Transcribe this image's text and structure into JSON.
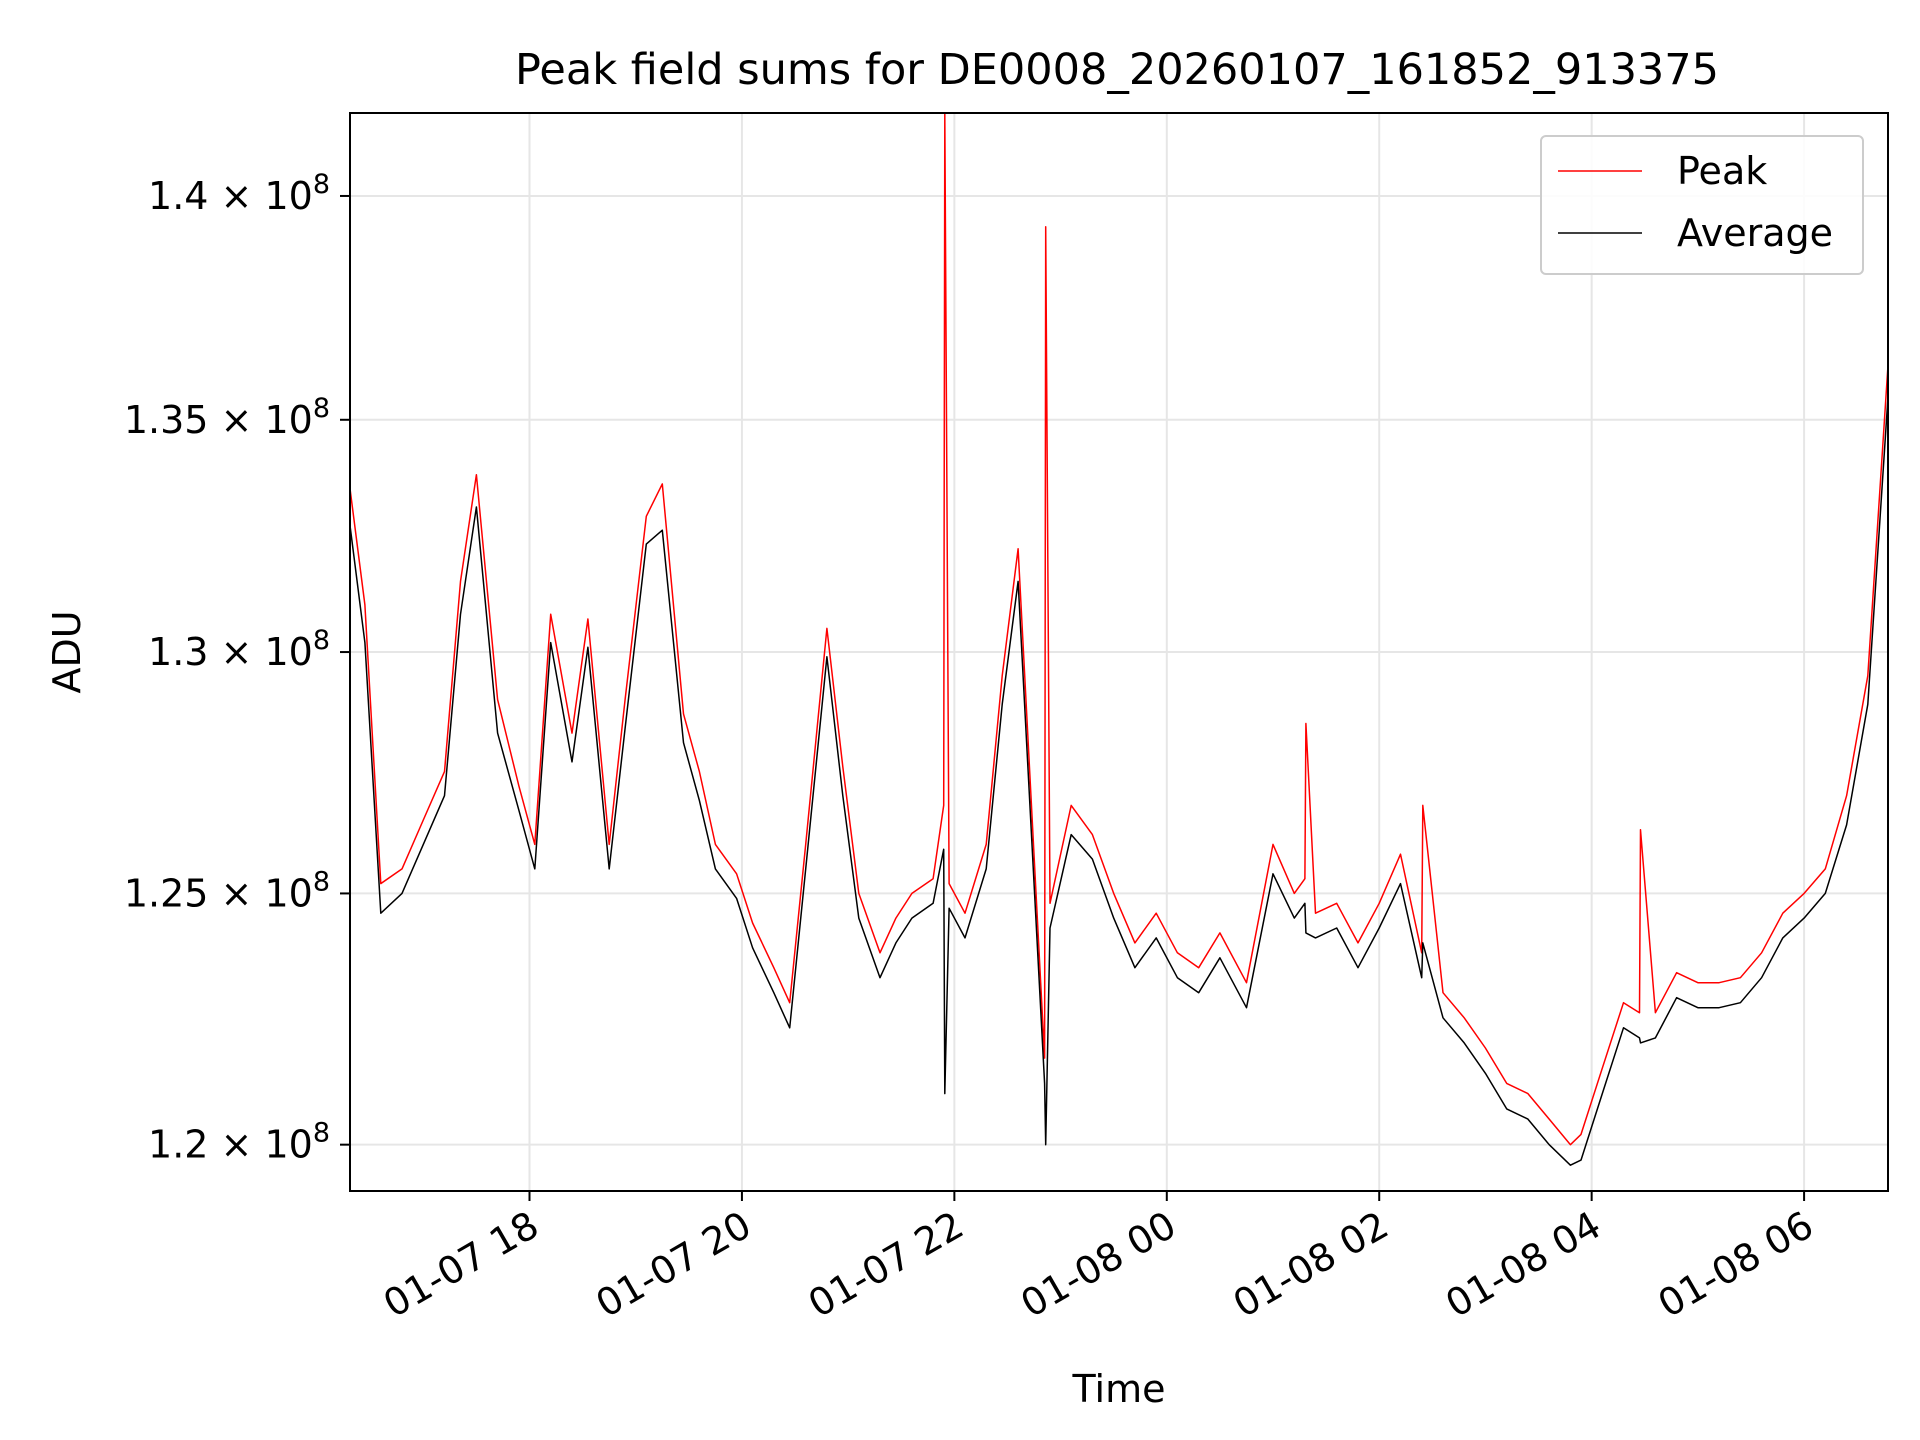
{
  "chart_data": {
    "type": "line",
    "title": "Peak field sums for DE0008_20260107_161852_913375",
    "xlabel": "Time",
    "ylabel": "ADU",
    "x_unit": "hours since 2026-01-07 00:00",
    "xlim": [
      16.31,
      30.79
    ],
    "ylim": [
      119100000,
      141900000
    ],
    "yscale": "log",
    "grid": true,
    "legend_position": "upper right",
    "x_ticks": [
      {
        "value": 18,
        "label": "01-07 18"
      },
      {
        "value": 20,
        "label": "01-07 20"
      },
      {
        "value": 22,
        "label": "01-07 22"
      },
      {
        "value": 24,
        "label": "01-08 00"
      },
      {
        "value": 26,
        "label": "01-08 02"
      },
      {
        "value": 28,
        "label": "01-08 04"
      },
      {
        "value": 30,
        "label": "01-08 06"
      }
    ],
    "y_ticks": [
      {
        "value": 120000000,
        "mantissa": "1.2",
        "base": "× 10",
        "exp": "8"
      },
      {
        "value": 125000000,
        "mantissa": "1.25",
        "base": "× 10",
        "exp": "8"
      },
      {
        "value": 130000000,
        "mantissa": "1.3",
        "base": "× 10",
        "exp": "8"
      },
      {
        "value": 135000000,
        "mantissa": "1.35",
        "base": "× 10",
        "exp": "8"
      },
      {
        "value": 140000000,
        "mantissa": "1.4",
        "base": "× 10",
        "exp": "8"
      }
    ],
    "series": [
      {
        "name": "Peak",
        "color": "#ff0000",
        "x": [
          16.31,
          16.45,
          16.6,
          16.8,
          17.0,
          17.2,
          17.35,
          17.5,
          17.7,
          17.9,
          18.05,
          18.2,
          18.4,
          18.55,
          18.75,
          18.9,
          19.1,
          19.25,
          19.45,
          19.6,
          19.75,
          19.95,
          20.1,
          20.3,
          20.45,
          20.6,
          20.8,
          20.95,
          21.1,
          21.3,
          21.45,
          21.6,
          21.8,
          21.9,
          21.91,
          21.95,
          22.1,
          22.3,
          22.45,
          22.6,
          22.85,
          22.86,
          22.9,
          23.1,
          23.3,
          23.5,
          23.7,
          23.9,
          24.1,
          24.3,
          24.5,
          24.75,
          25.0,
          25.2,
          25.3,
          25.31,
          25.4,
          25.6,
          25.8,
          26.0,
          26.2,
          26.4,
          26.41,
          26.6,
          26.8,
          27.0,
          27.2,
          27.4,
          27.6,
          27.8,
          27.9,
          28.1,
          28.3,
          28.45,
          28.46,
          28.6,
          28.8,
          29.0,
          29.2,
          29.4,
          29.6,
          29.8,
          30.0,
          30.2,
          30.4,
          30.6,
          30.79
        ],
        "values": [
          133500000,
          131000000,
          125200000,
          125500000,
          126500000,
          127500000,
          131500000,
          133800000,
          129000000,
          127200000,
          126000000,
          130800000,
          128300000,
          130700000,
          126000000,
          129000000,
          132900000,
          133600000,
          128700000,
          127500000,
          126000000,
          125400000,
          124400000,
          123500000,
          122800000,
          126000000,
          130500000,
          127600000,
          125000000,
          123800000,
          124500000,
          125000000,
          125300000,
          126800000,
          141900000,
          125200000,
          124600000,
          126000000,
          129500000,
          132200000,
          121700000,
          139300000,
          124800000,
          126800000,
          126200000,
          125000000,
          124000000,
          124600000,
          123800000,
          123500000,
          124200000,
          123200000,
          126000000,
          125000000,
          125300000,
          128500000,
          124600000,
          124800000,
          124000000,
          124800000,
          125800000,
          123800000,
          126800000,
          123000000,
          122500000,
          121900000,
          121200000,
          121000000,
          120500000,
          120000000,
          120200000,
          121500000,
          122800000,
          122600000,
          126300000,
          122600000,
          123400000,
          123200000,
          123200000,
          123300000,
          123800000,
          124600000,
          125000000,
          125500000,
          127000000,
          129500000,
          136200000
        ]
      },
      {
        "name": "Average",
        "color": "#000000",
        "x": [
          16.31,
          16.45,
          16.6,
          16.8,
          17.0,
          17.2,
          17.35,
          17.5,
          17.7,
          17.9,
          18.05,
          18.2,
          18.4,
          18.55,
          18.75,
          18.9,
          19.1,
          19.25,
          19.45,
          19.6,
          19.75,
          19.95,
          20.1,
          20.3,
          20.45,
          20.6,
          20.8,
          20.95,
          21.1,
          21.3,
          21.45,
          21.6,
          21.8,
          21.9,
          21.91,
          21.95,
          22.1,
          22.3,
          22.45,
          22.6,
          22.85,
          22.86,
          22.9,
          23.1,
          23.3,
          23.5,
          23.7,
          23.9,
          24.1,
          24.3,
          24.5,
          24.75,
          25.0,
          25.2,
          25.3,
          25.31,
          25.4,
          25.6,
          25.8,
          26.0,
          26.2,
          26.4,
          26.41,
          26.6,
          26.8,
          27.0,
          27.2,
          27.4,
          27.6,
          27.8,
          27.9,
          28.1,
          28.3,
          28.45,
          28.46,
          28.6,
          28.8,
          29.0,
          29.2,
          29.4,
          29.6,
          29.8,
          30.0,
          30.2,
          30.4,
          30.6,
          30.79
        ],
        "values": [
          132700000,
          130200000,
          124600000,
          125000000,
          126000000,
          127000000,
          130800000,
          133100000,
          128300000,
          126700000,
          125500000,
          130200000,
          127700000,
          130100000,
          125500000,
          128400000,
          132300000,
          132600000,
          128100000,
          126900000,
          125500000,
          124900000,
          123900000,
          123000000,
          122300000,
          125500000,
          129900000,
          127000000,
          124500000,
          123300000,
          124000000,
          124500000,
          124800000,
          125900000,
          121000000,
          124700000,
          124100000,
          125500000,
          128900000,
          131500000,
          121200000,
          120000000,
          124300000,
          126200000,
          125700000,
          124500000,
          123500000,
          124100000,
          123300000,
          123000000,
          123700000,
          122700000,
          125400000,
          124500000,
          124800000,
          124200000,
          124100000,
          124300000,
          123500000,
          124300000,
          125200000,
          123300000,
          124000000,
          122500000,
          122000000,
          121400000,
          120700000,
          120500000,
          120000000,
          119600000,
          119700000,
          121000000,
          122300000,
          122100000,
          122000000,
          122100000,
          122900000,
          122700000,
          122700000,
          122800000,
          123300000,
          124100000,
          124500000,
          125000000,
          126400000,
          128900000,
          135500000
        ]
      }
    ]
  }
}
